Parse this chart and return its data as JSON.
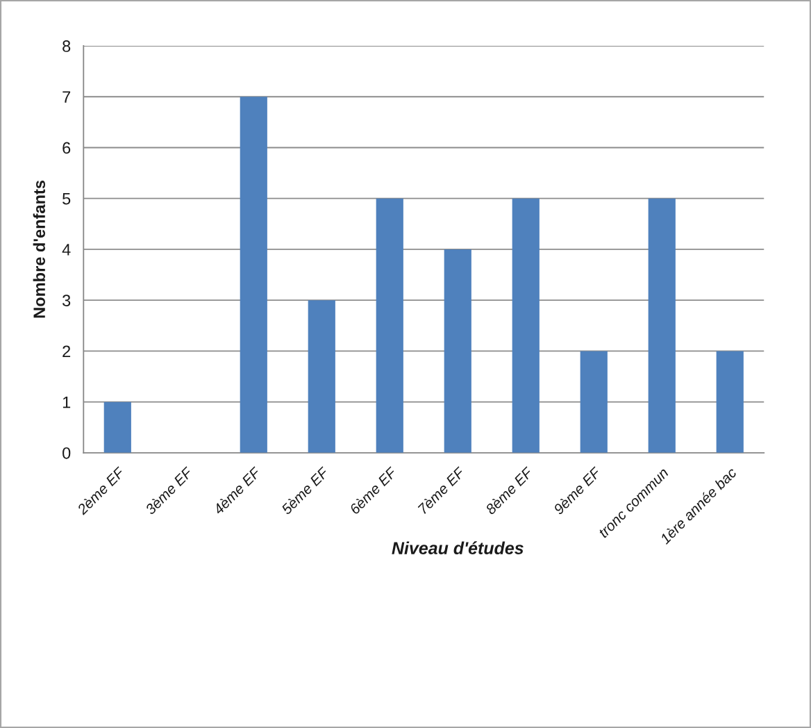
{
  "chart_data": {
    "type": "bar",
    "xlabel": "Niveau d'études",
    "ylabel": "Nombre d'enfants",
    "categories": [
      "2ème EF",
      "3ème EF",
      "4ème EF",
      "5ème EF",
      "6ème EF",
      "7ème EF",
      "8ème EF",
      "9ème EF",
      "tronc commun",
      "1ère année bac"
    ],
    "values": [
      1,
      0,
      7,
      3,
      5,
      4,
      5,
      2,
      5,
      2
    ],
    "color": "#4f81bd",
    "ylim": [
      0,
      8
    ],
    "yticks": [
      0,
      1,
      2,
      3,
      4,
      5,
      6,
      7,
      8
    ],
    "grid": "y"
  }
}
